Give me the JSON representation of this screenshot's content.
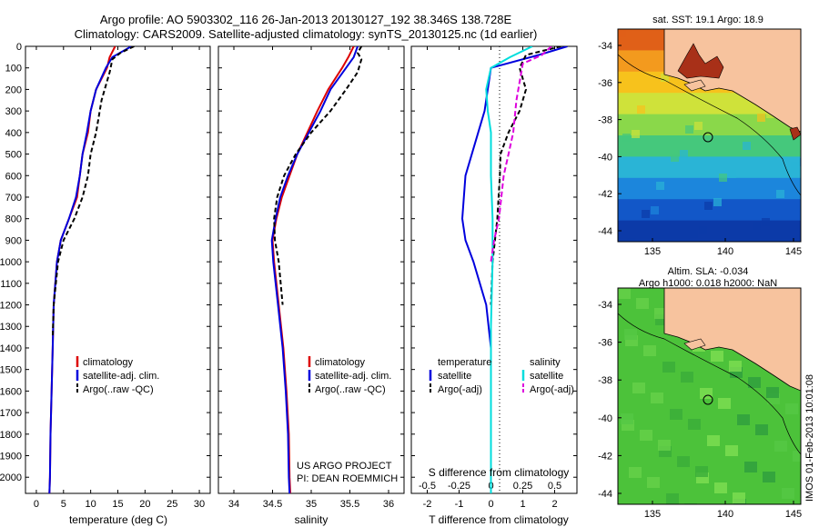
{
  "header": {
    "line1": "Argo profile: AO 5903302_116 26-Jan-2013 20130127_192 38.346S 138.728E",
    "line2": "Climatology: CARS2009. Satellite-adjusted climatology: synTS_20130125.nc (1d earlier)"
  },
  "colors": {
    "climatology": "#dd0000",
    "satellite": "#0000dd",
    "argo": "#000000",
    "cyan": "#00dddd",
    "magenta": "#dd00dd"
  },
  "chart_data": [
    {
      "type": "line",
      "name": "temperature",
      "xlabel": "temperature (deg C)",
      "xlim": [
        -2,
        32
      ],
      "ylim": [
        0,
        2075
      ],
      "xticks": [
        0,
        5,
        10,
        15,
        20,
        25,
        30
      ],
      "yticks": [
        0,
        100,
        200,
        300,
        400,
        500,
        600,
        700,
        800,
        900,
        1000,
        1100,
        1200,
        1300,
        1400,
        1500,
        1600,
        1700,
        1800,
        1900,
        2000
      ],
      "legend": [
        "climatology",
        "satellite-adj. clim.",
        "Argo(..raw -QC)"
      ],
      "series": [
        {
          "name": "climatology",
          "color": "#dd0000",
          "dash": "none",
          "x": [
            14.5,
            13.5,
            13,
            11,
            10,
            9.5,
            8.5,
            8,
            7.5,
            6,
            4.5,
            3.8,
            3.2,
            3,
            2.8,
            2.6,
            2.5,
            2.4
          ],
          "y": [
            0,
            50,
            100,
            200,
            300,
            400,
            500,
            600,
            700,
            800,
            900,
            1000,
            1200,
            1400,
            1600,
            1800,
            2000,
            2075
          ]
        },
        {
          "name": "satellite-adj. clim.",
          "color": "#0000dd",
          "dash": "none",
          "x": [
            17.5,
            14,
            12.8,
            11,
            10,
            9.3,
            8.5,
            8,
            7.3,
            6,
            4.5,
            3.8,
            3.2,
            3,
            2.8,
            2.6,
            2.5,
            2.4
          ],
          "y": [
            0,
            50,
            100,
            200,
            300,
            400,
            500,
            600,
            700,
            800,
            900,
            1000,
            1200,
            1400,
            1600,
            1800,
            2000,
            2075
          ]
        },
        {
          "name": "Argo(..raw -QC)",
          "color": "#000000",
          "dash": "5,3",
          "x": [
            18,
            15.5,
            14,
            13.5,
            12,
            11,
            10,
            9.5,
            8.5,
            7,
            5,
            4,
            3.2,
            3
          ],
          "y": [
            0,
            30,
            60,
            120,
            250,
            400,
            500,
            600,
            700,
            800,
            900,
            1000,
            1200,
            1350
          ]
        }
      ]
    },
    {
      "type": "line",
      "name": "salinity",
      "xlabel": "salinity",
      "xlim": [
        33.8,
        36.2
      ],
      "ylim": [
        0,
        2075
      ],
      "xticks": [
        34,
        34.5,
        35,
        35.5,
        36
      ],
      "legend": [
        "climatology",
        "satellite-adj. clim.",
        "Argo(..raw -QC)"
      ],
      "annotation": [
        "US ARGO PROJECT",
        "PI: DEAN ROEMMICH"
      ],
      "series": [
        {
          "name": "climatology",
          "color": "#dd0000",
          "dash": "none",
          "x": [
            35.55,
            35.48,
            35.4,
            35.22,
            35.08,
            34.95,
            34.82,
            34.72,
            34.62,
            34.55,
            34.5,
            34.52,
            34.58,
            34.64,
            34.68,
            34.71,
            34.72,
            34.73
          ],
          "y": [
            0,
            50,
            100,
            200,
            300,
            400,
            500,
            600,
            700,
            800,
            900,
            1000,
            1200,
            1400,
            1600,
            1800,
            2000,
            2075
          ]
        },
        {
          "name": "satellite-adj. clim.",
          "color": "#0000dd",
          "dash": "none",
          "x": [
            35.6,
            35.55,
            35.45,
            35.25,
            35.12,
            34.97,
            34.82,
            34.7,
            34.6,
            34.54,
            34.49,
            34.51,
            34.57,
            34.63,
            34.67,
            34.7,
            34.71,
            34.72
          ],
          "y": [
            0,
            50,
            100,
            200,
            300,
            400,
            500,
            600,
            700,
            800,
            900,
            1000,
            1200,
            1400,
            1600,
            1800,
            2000,
            2075
          ]
        },
        {
          "name": "Argo(..raw -QC)",
          "color": "#000000",
          "dash": "5,3",
          "x": [
            35.65,
            35.6,
            35.65,
            35.6,
            35.45,
            35.25,
            35.0,
            34.8,
            34.65,
            34.56,
            34.52,
            34.53,
            34.58,
            34.63
          ],
          "y": [
            0,
            30,
            60,
            120,
            200,
            300,
            400,
            500,
            600,
            700,
            800,
            900,
            1000,
            1200
          ]
        }
      ]
    },
    {
      "type": "line",
      "name": "difference",
      "xlabel": "T difference from climatology",
      "toplabel": "S difference from climatology",
      "xlim": [
        -2.5,
        2.7
      ],
      "ylim": [
        0,
        2075
      ],
      "xticks": [
        -2,
        -1,
        0,
        1,
        2
      ],
      "sticks": [
        "-0.5",
        "-0.25",
        "0",
        "0.25",
        "0.5"
      ],
      "legend_left_title": "temperature",
      "legend_right_title": "salinity",
      "legend": [
        "satellite",
        "Argo(-adj)",
        "satellite",
        "Argo(-adj)"
      ],
      "series": [
        {
          "name": "T satellite",
          "color": "#0000dd",
          "dash": "none",
          "x": [
            2.4,
            1.5,
            0,
            -0.1,
            -0.2,
            -0.4,
            -0.8,
            -0.9,
            -0.8,
            -0.55,
            -0.35,
            -0.15,
            0,
            0,
            0,
            0
          ],
          "y": [
            0,
            40,
            100,
            200,
            300,
            400,
            600,
            800,
            900,
            1000,
            1100,
            1200,
            1400,
            1600,
            1800,
            2075
          ]
        },
        {
          "name": "T Argo(-adj)",
          "color": "#000000",
          "dash": "5,3",
          "x": [
            2.2,
            1.1,
            0.9,
            1.1,
            0.9,
            0.55,
            0.3,
            0.28,
            0.2,
            0.05,
            0
          ],
          "y": [
            0,
            40,
            100,
            200,
            300,
            400,
            500,
            600,
            800,
            1000,
            1200
          ]
        },
        {
          "name": "S satellite",
          "color": "#00dddd",
          "dash": "none",
          "x": [
            1.3,
            0.6,
            0,
            -0.15,
            -0.1,
            0,
            0,
            0.05,
            0.05,
            0,
            0
          ],
          "y": [
            0,
            50,
            100,
            200,
            300,
            400,
            600,
            800,
            1000,
            1300,
            2075
          ]
        },
        {
          "name": "S Argo(-adj)",
          "color": "#dd00dd",
          "dash": "6,3",
          "x": [
            1.9,
            1.6,
            1.0,
            0.8,
            0.7,
            0.55,
            0.4,
            0.25,
            0.1,
            0
          ],
          "y": [
            0,
            40,
            80,
            250,
            400,
            500,
            600,
            800,
            900,
            1000
          ]
        }
      ]
    }
  ],
  "maps": [
    {
      "title": "sat. SST: 19.1 Argo: 18.9",
      "yticks": [
        "-34",
        "-36",
        "-38",
        "-40",
        "-42",
        "-44"
      ],
      "xticks": [
        "135",
        "140",
        "145"
      ],
      "bands": [
        "#e06018",
        "#f39a1e",
        "#f7c21c",
        "#cfe23a",
        "#8ad84a",
        "#45c87c",
        "#2ab4d6",
        "#1c86dc",
        "#1257c8",
        "#0c3aa8"
      ]
    },
    {
      "title1": "Altim. SLA: -0.034",
      "title2": "Argo h1000: 0.018 h2000: NaN",
      "yticks": [
        "-34",
        "-36",
        "-38",
        "-40",
        "-42",
        "-44"
      ],
      "xticks": [
        "135",
        "140",
        "145"
      ]
    }
  ],
  "watermark": "IMOS 01-Feb-2013 10:01:08"
}
